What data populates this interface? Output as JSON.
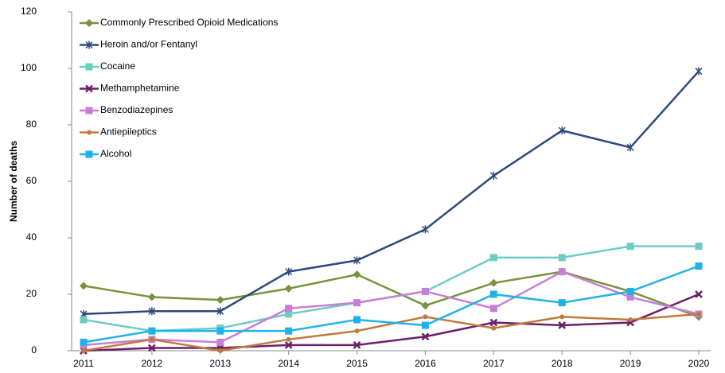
{
  "chart_data": {
    "type": "line",
    "y_label": "Number of deaths",
    "categories": [
      "2011",
      "2012",
      "2013",
      "2014",
      "2015",
      "2016",
      "2017",
      "2018",
      "2019",
      "2020"
    ],
    "ylim": [
      0,
      120
    ],
    "yticks": [
      0,
      20,
      40,
      60,
      80,
      100,
      120
    ],
    "legend": "top-left",
    "series": [
      {
        "name": "Commonly Prescribed Opioid Medications",
        "color": "#77933c",
        "marker": "diamond",
        "values": [
          23,
          19,
          18,
          22,
          27,
          16,
          24,
          28,
          21,
          12
        ]
      },
      {
        "name": "Heroin and/or Fentanyl",
        "color": "#2c4a7c",
        "marker": "star",
        "values": [
          13,
          14,
          14,
          28,
          32,
          43,
          62,
          78,
          72,
          99
        ]
      },
      {
        "name": "Cocaine",
        "color": "#6dcdc5",
        "marker": "square",
        "values": [
          11,
          7,
          8,
          13,
          17,
          21,
          33,
          33,
          37,
          37
        ]
      },
      {
        "name": "Methamphetamine",
        "color": "#6b1f6a",
        "marker": "x",
        "values": [
          0,
          1,
          1,
          2,
          2,
          5,
          10,
          9,
          10,
          20
        ]
      },
      {
        "name": "Benzodiazepines",
        "color": "#c87fd6",
        "marker": "square",
        "values": [
          2,
          4,
          3,
          15,
          17,
          21,
          15,
          28,
          19,
          13
        ]
      },
      {
        "name": "Antiepileptics",
        "color": "#c07a3c",
        "marker": "circle",
        "values": [
          0,
          4,
          0,
          4,
          7,
          12,
          8,
          12,
          11,
          13
        ]
      },
      {
        "name": "Alcohol",
        "color": "#1fb2ea",
        "marker": "square",
        "values": [
          3,
          7,
          7,
          7,
          11,
          9,
          20,
          17,
          21,
          30
        ]
      }
    ]
  }
}
